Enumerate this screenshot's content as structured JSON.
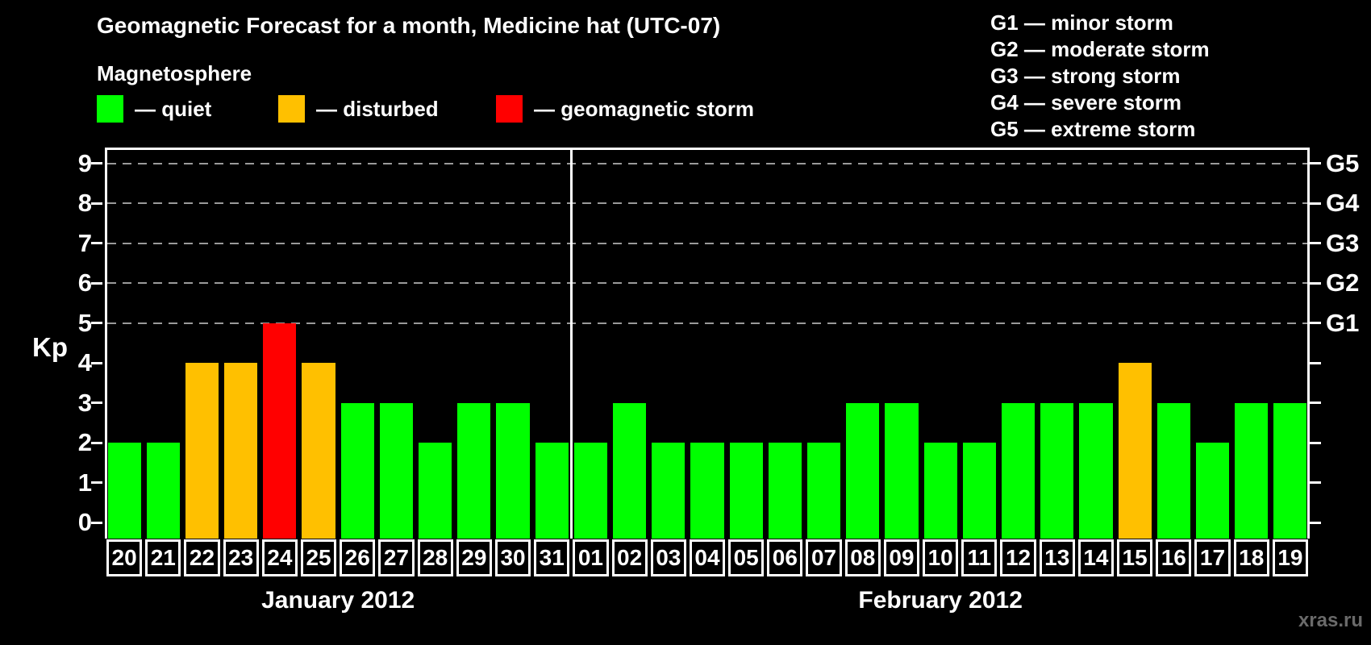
{
  "header": {
    "title": "Geomagnetic Forecast for a month, Medicine hat (UTC-07)",
    "subtitle": "Magnetosphere"
  },
  "magnetosphere_legend": [
    {
      "id": "quiet",
      "swatch_color": "#00ff00",
      "label": "— quiet"
    },
    {
      "id": "disturbed",
      "swatch_color": "#ffc000",
      "label": "— disturbed"
    },
    {
      "id": "storm",
      "swatch_color": "#ff0000",
      "label": "— geomagnetic storm"
    }
  ],
  "gscale_legend": [
    "G1 — minor storm",
    "G2 — moderate storm",
    "G3 — strong storm",
    "G4 — severe storm",
    "G5 — extreme storm"
  ],
  "watermark": "xras.ru",
  "chart_data": {
    "type": "bar",
    "title": "Geomagnetic Forecast for a month, Medicine hat (UTC-07)",
    "ylabel": "Kp",
    "ylim": [
      -0.4,
      9.4
    ],
    "yticks": [
      0,
      1,
      2,
      3,
      4,
      5,
      6,
      7,
      8,
      9
    ],
    "gridlines_at": [
      5,
      6,
      7,
      8,
      9
    ],
    "grid": "dashed-horizontal",
    "right_axis": [
      {
        "kp": 5,
        "label": "G1"
      },
      {
        "kp": 6,
        "label": "G2"
      },
      {
        "kp": 7,
        "label": "G3"
      },
      {
        "kp": 8,
        "label": "G4"
      },
      {
        "kp": 9,
        "label": "G5"
      }
    ],
    "status_colors": {
      "quiet": "#00ff00",
      "disturbed": "#ffc000",
      "storm": "#ff0000"
    },
    "months": [
      {
        "label": "January 2012",
        "days": [
          {
            "date": "20",
            "kp": 2,
            "status": "quiet"
          },
          {
            "date": "21",
            "kp": 2,
            "status": "quiet"
          },
          {
            "date": "22",
            "kp": 4,
            "status": "disturbed"
          },
          {
            "date": "23",
            "kp": 4,
            "status": "disturbed"
          },
          {
            "date": "24",
            "kp": 5,
            "status": "storm"
          },
          {
            "date": "25",
            "kp": 4,
            "status": "disturbed"
          },
          {
            "date": "26",
            "kp": 3,
            "status": "quiet"
          },
          {
            "date": "27",
            "kp": 3,
            "status": "quiet"
          },
          {
            "date": "28",
            "kp": 2,
            "status": "quiet"
          },
          {
            "date": "29",
            "kp": 3,
            "status": "quiet"
          },
          {
            "date": "30",
            "kp": 3,
            "status": "quiet"
          },
          {
            "date": "31",
            "kp": 2,
            "status": "quiet"
          }
        ]
      },
      {
        "label": "February 2012",
        "days": [
          {
            "date": "01",
            "kp": 2,
            "status": "quiet"
          },
          {
            "date": "02",
            "kp": 3,
            "status": "quiet"
          },
          {
            "date": "03",
            "kp": 2,
            "status": "quiet"
          },
          {
            "date": "04",
            "kp": 2,
            "status": "quiet"
          },
          {
            "date": "05",
            "kp": 2,
            "status": "quiet"
          },
          {
            "date": "06",
            "kp": 2,
            "status": "quiet"
          },
          {
            "date": "07",
            "kp": 2,
            "status": "quiet"
          },
          {
            "date": "08",
            "kp": 3,
            "status": "quiet"
          },
          {
            "date": "09",
            "kp": 3,
            "status": "quiet"
          },
          {
            "date": "10",
            "kp": 2,
            "status": "quiet"
          },
          {
            "date": "11",
            "kp": 2,
            "status": "quiet"
          },
          {
            "date": "12",
            "kp": 3,
            "status": "quiet"
          },
          {
            "date": "13",
            "kp": 3,
            "status": "quiet"
          },
          {
            "date": "14",
            "kp": 3,
            "status": "quiet"
          },
          {
            "date": "15",
            "kp": 4,
            "status": "disturbed"
          },
          {
            "date": "16",
            "kp": 3,
            "status": "quiet"
          },
          {
            "date": "17",
            "kp": 2,
            "status": "quiet"
          },
          {
            "date": "18",
            "kp": 3,
            "status": "quiet"
          },
          {
            "date": "19",
            "kp": 3,
            "status": "quiet"
          }
        ]
      }
    ]
  }
}
